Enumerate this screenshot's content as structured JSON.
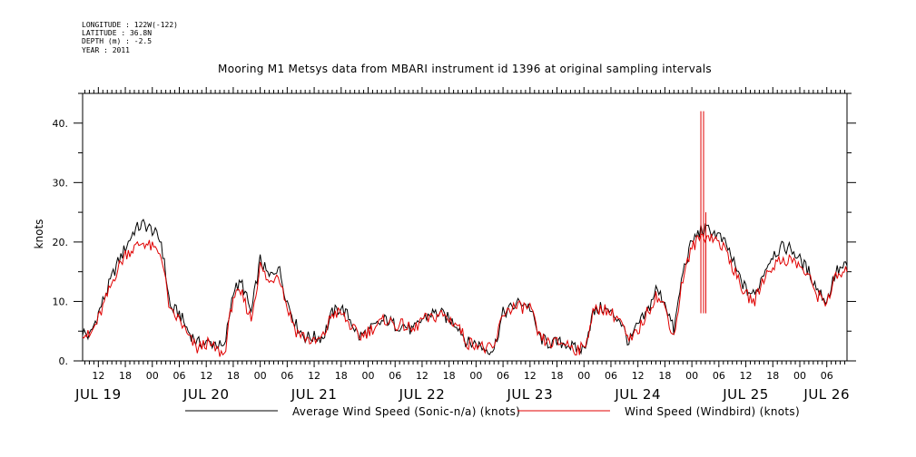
{
  "header": {
    "meta_lines": [
      "LONGITUDE : 122W(-122)",
      "LATITUDE : 36.8N",
      "DEPTH (m) : -2.5",
      "YEAR : 2011"
    ]
  },
  "chart_data": {
    "type": "line",
    "title": "Mooring M1 Metsys data from MBARI instrument id 1396 at original sampling intervals",
    "ylabel": "knots",
    "xlabel": "",
    "ylim": [
      0,
      45
    ],
    "y_ticks": [
      "0.",
      "10.",
      "20.",
      "30.",
      "40."
    ],
    "y_tick_values": [
      0,
      10,
      20,
      30,
      40
    ],
    "x_hour_ticks": [
      "12",
      "18",
      "00",
      "06",
      "12",
      "18",
      "00",
      "06",
      "12",
      "18",
      "00",
      "06",
      "12",
      "18",
      "00",
      "06",
      "12",
      "18",
      "00",
      "06",
      "12",
      "18",
      "00",
      "06",
      "12",
      "18",
      "00",
      "06"
    ],
    "x_hour_tick_hours": [
      12,
      18,
      24,
      30,
      36,
      42,
      48,
      54,
      60,
      66,
      72,
      78,
      84,
      90,
      96,
      102,
      108,
      114,
      120,
      126,
      132,
      138,
      144,
      150,
      156,
      162,
      168,
      174
    ],
    "x_day_labels": [
      "JUL 19",
      "JUL 20",
      "JUL 21",
      "JUL 22",
      "JUL 23",
      "JUL 24",
      "JUL 25",
      "JUL 26"
    ],
    "x_day_label_hours": [
      12,
      36,
      60,
      84,
      108,
      132,
      156,
      174
    ],
    "x_unit": "hours since JUL 19 00:00",
    "xlim": [
      8.5,
      178.5
    ],
    "grid": false,
    "legend_position": "bottom",
    "colors": {
      "average": "#000000",
      "windbird": "#e00000"
    },
    "series": [
      {
        "name": "Average Wind Speed (Sonic-n/a) (knots)",
        "color": "#000000",
        "x": [
          8.5,
          10,
          12,
          14,
          16,
          18,
          20,
          22,
          24,
          26,
          28,
          30,
          32,
          34,
          36,
          38,
          40,
          42,
          44,
          46,
          48,
          50,
          52,
          54,
          56,
          58,
          60,
          62,
          64,
          66,
          68,
          70,
          72,
          74,
          76,
          78,
          80,
          82,
          84,
          86,
          88,
          90,
          92,
          94,
          96,
          98,
          100,
          102,
          104,
          106,
          108,
          110,
          112,
          114,
          116,
          118,
          120,
          122,
          124,
          126,
          128,
          130,
          132,
          134,
          136,
          138,
          140,
          142,
          144,
          146,
          148,
          150,
          152,
          154,
          156,
          158,
          160,
          162,
          164,
          166,
          168,
          170,
          172,
          174,
          176,
          178.5
        ],
        "y": [
          5,
          4,
          8,
          12,
          16,
          19,
          22,
          23,
          22,
          20,
          9,
          8,
          5,
          3,
          3,
          3,
          2,
          12,
          13,
          8,
          17,
          14,
          16,
          10,
          6,
          4,
          4,
          4,
          8,
          9,
          7,
          4,
          5,
          6,
          7,
          6,
          6,
          5,
          7,
          8,
          8,
          7,
          6,
          3,
          3,
          2,
          2,
          8,
          9,
          10,
          9,
          4,
          3,
          3,
          3,
          2,
          2,
          8,
          9,
          8,
          7,
          3,
          6,
          8,
          12,
          10,
          5,
          15,
          20,
          22,
          22,
          21,
          19,
          15,
          12,
          11,
          15,
          18,
          19,
          19,
          17,
          15,
          12,
          10,
          15,
          16
        ],
        "spikes": []
      },
      {
        "name": "Wind Speed (Windbird) (knots)",
        "color": "#e00000",
        "x": [
          8.5,
          10,
          12,
          14,
          16,
          18,
          20,
          22,
          24,
          26,
          28,
          30,
          32,
          34,
          36,
          38,
          40,
          42,
          44,
          46,
          48,
          50,
          52,
          54,
          56,
          58,
          60,
          62,
          64,
          66,
          68,
          70,
          72,
          74,
          76,
          78,
          80,
          82,
          84,
          86,
          88,
          90,
          92,
          94,
          96,
          98,
          100,
          102,
          104,
          106,
          108,
          110,
          112,
          114,
          116,
          118,
          120,
          122,
          124,
          126,
          128,
          130,
          132,
          134,
          136,
          138,
          140,
          142,
          144,
          146,
          148,
          150,
          152,
          154,
          156,
          158,
          160,
          162,
          164,
          166,
          168,
          170,
          172,
          174,
          176,
          178.5
        ],
        "y": [
          5,
          4,
          7,
          11,
          15,
          18,
          19,
          20,
          19,
          18,
          8,
          7,
          4,
          2,
          3,
          2,
          1,
          11,
          11,
          7,
          16,
          13,
          15,
          9,
          5,
          4,
          3,
          4,
          8,
          8,
          6,
          4,
          5,
          6,
          7,
          6,
          6,
          5,
          7,
          7,
          8,
          7,
          6,
          3,
          3,
          2,
          2,
          8,
          9,
          9,
          9,
          4,
          3,
          3,
          3,
          2,
          2,
          8,
          9,
          8,
          7,
          3,
          5,
          8,
          11,
          9,
          4,
          14,
          19,
          21,
          21,
          20,
          18,
          14,
          11,
          10,
          14,
          16,
          17,
          17,
          16,
          14,
          11,
          10,
          14,
          15
        ],
        "spikes": [
          {
            "x": 146.0,
            "y": 42
          },
          {
            "x": 146.6,
            "y": 42
          },
          {
            "x": 147.1,
            "y": 25
          }
        ]
      }
    ]
  }
}
